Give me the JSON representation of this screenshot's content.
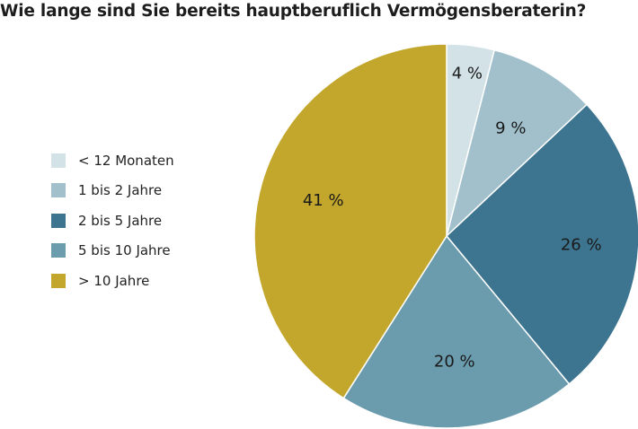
{
  "chart_data": {
    "type": "pie",
    "title": "Wie lange sind Sie bereits hauptberuflich Vermögensberaterin?",
    "categories": [
      "< 12 Monaten",
      "1 bis 2 Jahre",
      "2 bis 5 Jahre",
      "5 bis 10 Jahre",
      "> 10 Jahre"
    ],
    "values": [
      4,
      9,
      26,
      20,
      41
    ],
    "value_labels": [
      "4 %",
      "9 %",
      "26 %",
      "20 %",
      "41 %"
    ],
    "colors": [
      "#d2e2e7",
      "#a1c0cc",
      "#3d7590",
      "#6b9cae",
      "#c3a72c"
    ],
    "legend_position": "left",
    "start_angle": "top, clockwise"
  }
}
